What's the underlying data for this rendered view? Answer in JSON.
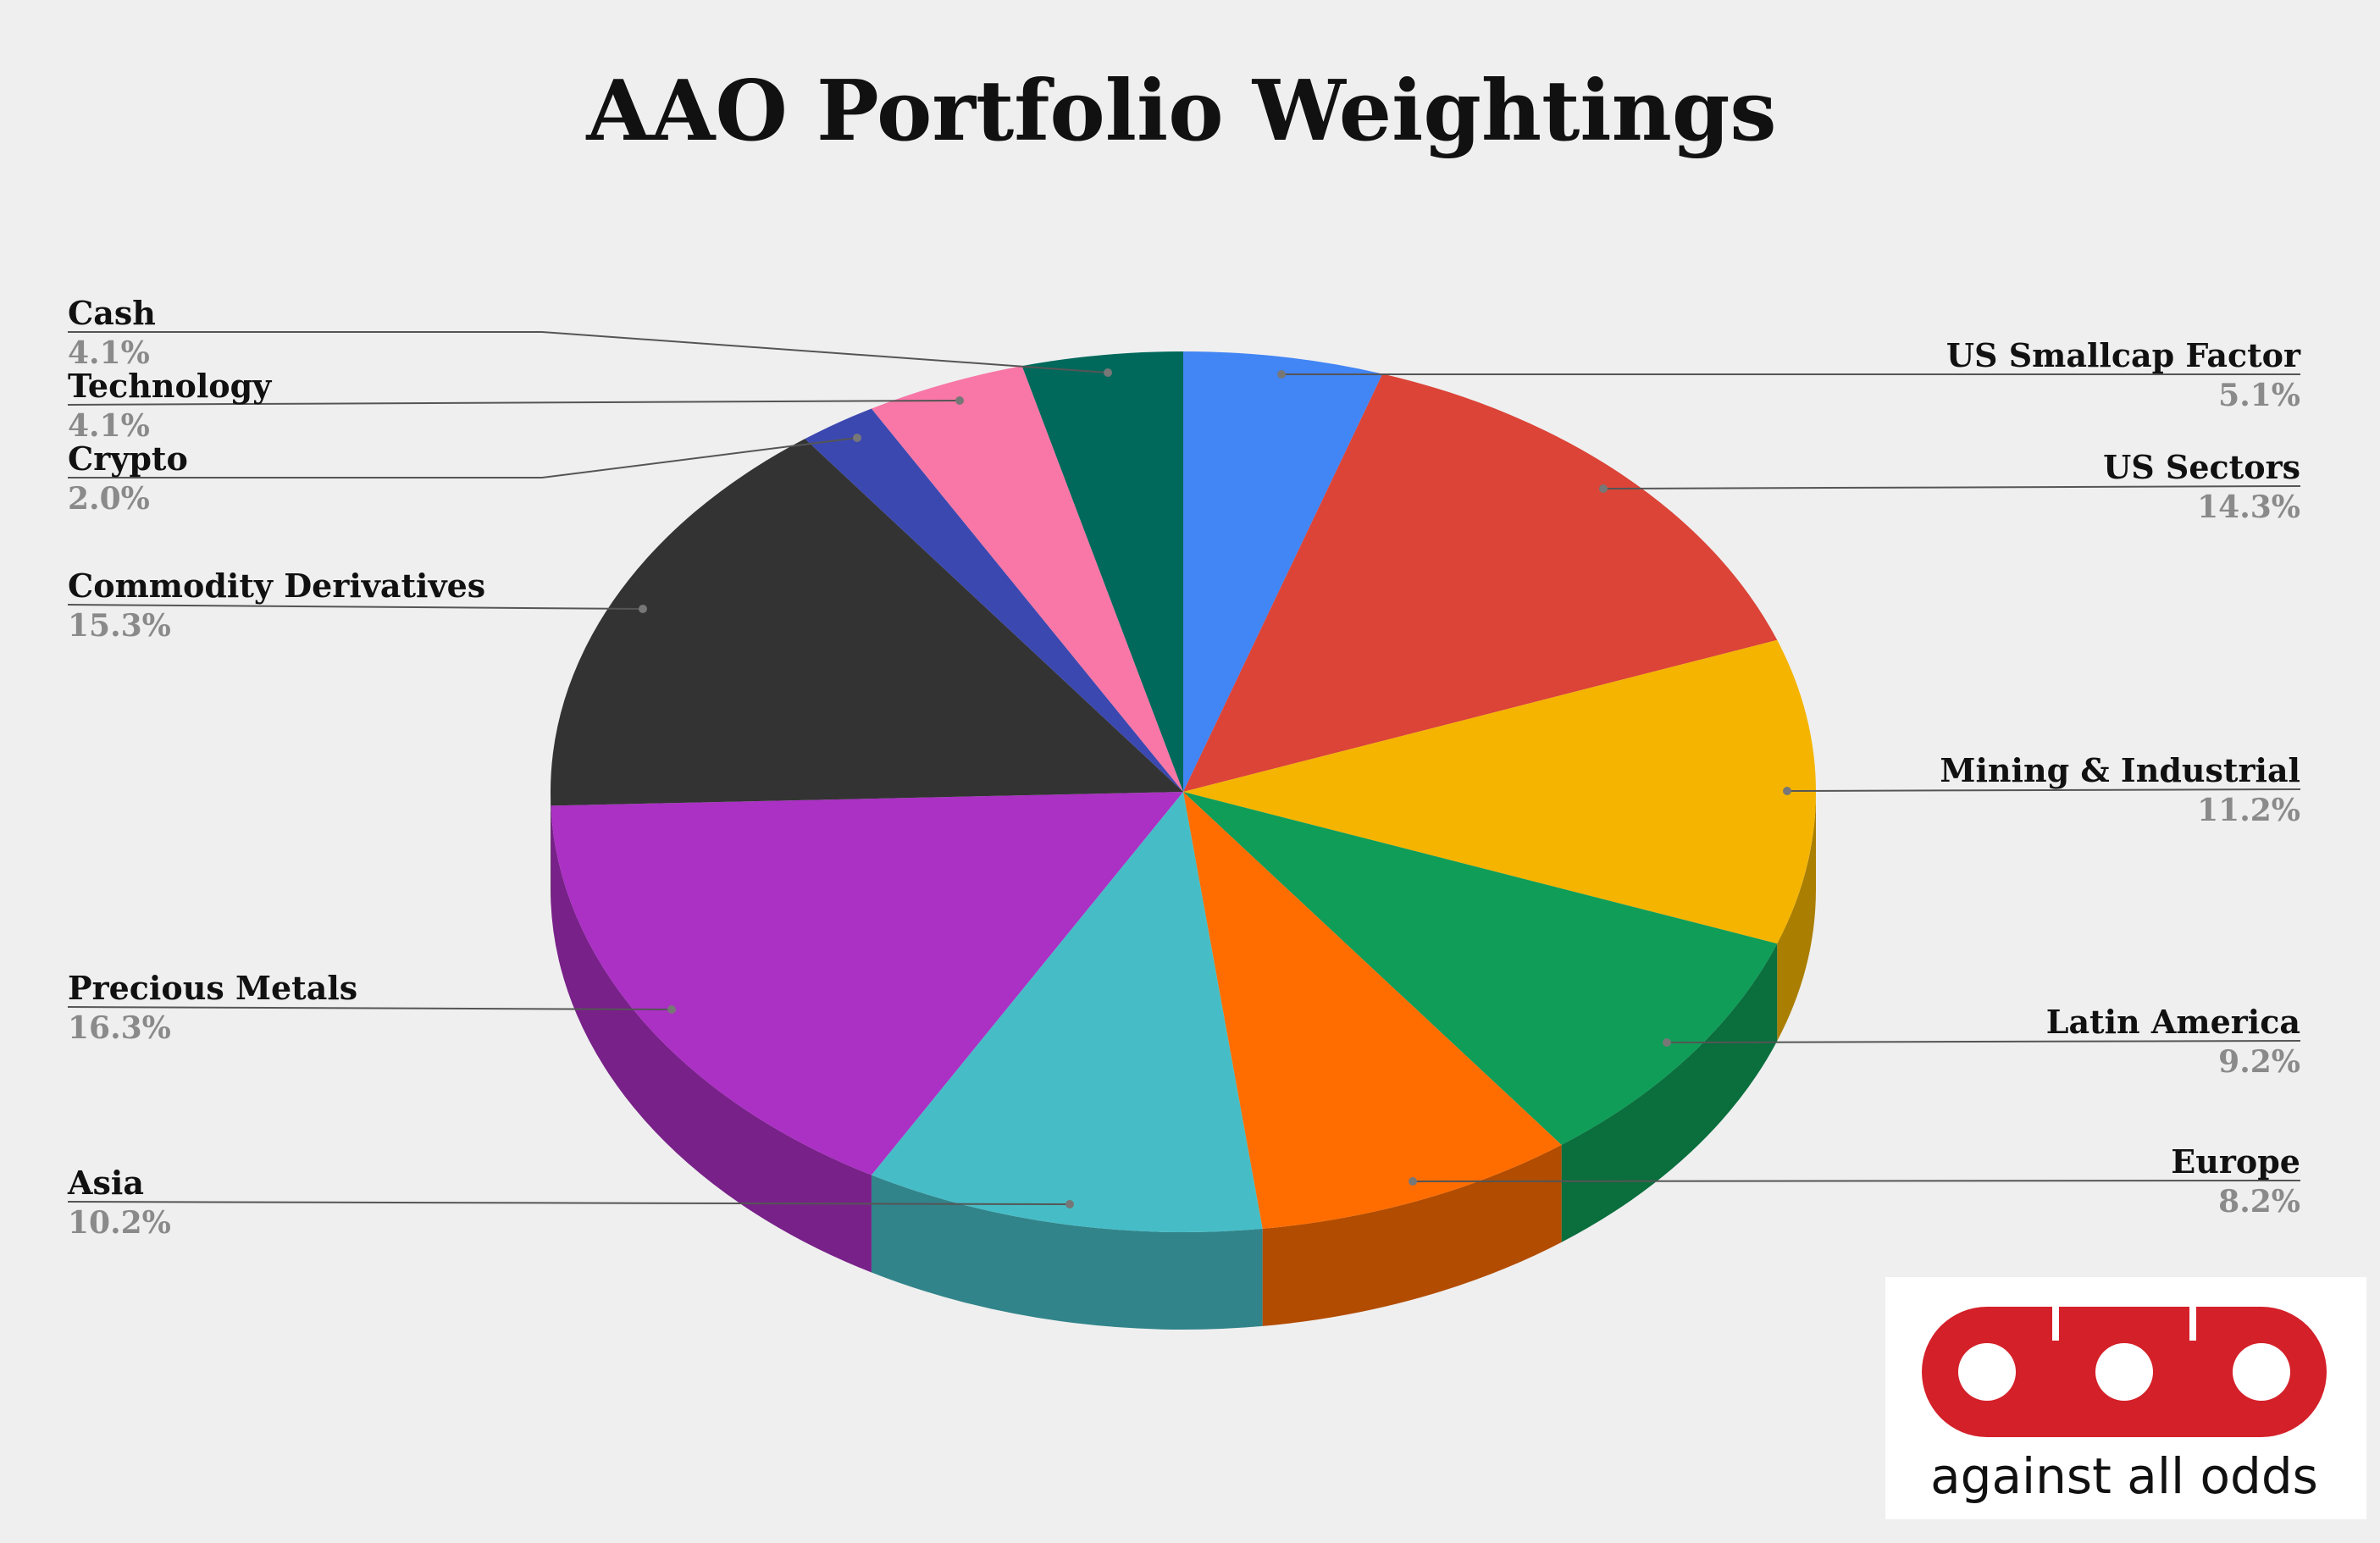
{
  "colors": {
    "background": "#efefef",
    "logo_red": "#d42029"
  },
  "chart_data": {
    "type": "pie",
    "title": "AAO Portfolio Weightings",
    "style": "3d-exploded-none",
    "start_angle_deg": 0,
    "direction": "clockwise",
    "slices": [
      {
        "label": "US Smallcap Factor",
        "value": 5.1,
        "value_label": "5.1%",
        "color": "#4285f4",
        "side_color": "#2d5cab"
      },
      {
        "label": "US Sectors",
        "value": 14.3,
        "value_label": "14.3%",
        "color": "#db4437",
        "side_color": "#992f26"
      },
      {
        "label": "Mining & Industrial",
        "value": 11.2,
        "value_label": "11.2%",
        "color": "#f4b400",
        "side_color": "#aa7e00"
      },
      {
        "label": "Latin America",
        "value": 9.2,
        "value_label": "9.2%",
        "color": "#0f9d58",
        "side_color": "#0a6e3d"
      },
      {
        "label": "Europe",
        "value": 8.2,
        "value_label": "8.2%",
        "color": "#ff6d00",
        "side_color": "#b24c00"
      },
      {
        "label": "Asia",
        "value": 10.2,
        "value_label": "10.2%",
        "color": "#46bdc6",
        "side_color": "#31848a"
      },
      {
        "label": "Precious Metals",
        "value": 16.3,
        "value_label": "16.3%",
        "color": "#ab30c4",
        "side_color": "#782189"
      },
      {
        "label": "Commodity Derivatives",
        "value": 15.3,
        "value_label": "15.3%",
        "color": "#333333",
        "side_color": "#222222"
      },
      {
        "label": "Crypto",
        "value": 2.0,
        "value_label": "2.0%",
        "color": "#3b48b0",
        "side_color": "#29327b"
      },
      {
        "label": "Technology",
        "value": 4.1,
        "value_label": "4.1%",
        "color": "#f877a6",
        "side_color": "#ad5374"
      },
      {
        "label": "Cash",
        "value": 4.1,
        "value_label": "4.1%",
        "color": "#00695c",
        "side_color": "#004940"
      }
    ]
  },
  "logo": {
    "text": "against all odds",
    "glyph_icon": "aao-logo-icon"
  }
}
